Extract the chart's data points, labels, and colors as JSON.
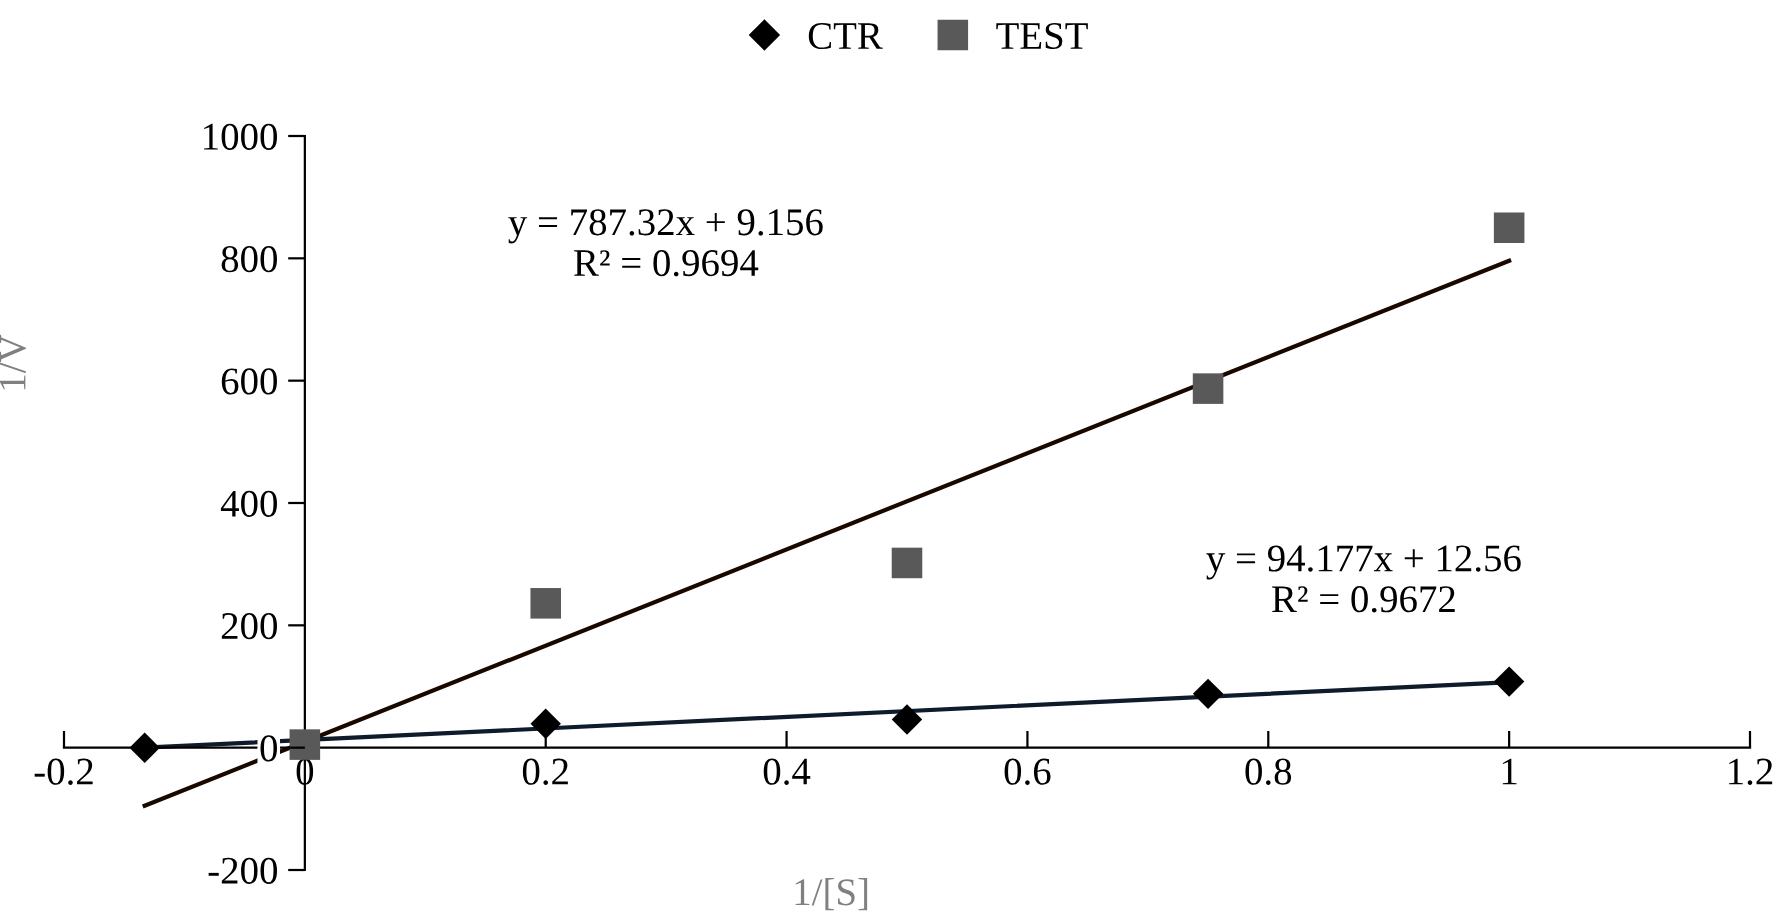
{
  "chart_data": {
    "type": "scatter",
    "xlabel": "1/[S]",
    "ylabel": "1/V",
    "xlim": [
      -0.2,
      1.2
    ],
    "xticks": [
      -0.2,
      0,
      0.2,
      0.4,
      0.6,
      0.8,
      1,
      1.2
    ],
    "ylim": [
      -200,
      1000
    ],
    "yticks": [
      -200,
      0,
      200,
      400,
      600,
      800,
      1000
    ],
    "grid": false,
    "legend": "top",
    "series": [
      {
        "name": "CTR",
        "color": "#000000",
        "marker": "diamond",
        "x": [
          -0.133,
          0.2,
          0.5,
          0.75,
          1
        ],
        "values": [
          0,
          39,
          46,
          88,
          108
        ]
      },
      {
        "name": "TEST",
        "color": "#595959",
        "marker": "square",
        "x": [
          0,
          0.2,
          0.5,
          0.75,
          1
        ],
        "values": [
          5,
          236,
          302,
          587,
          850
        ]
      },
      {
        "type": "line",
        "color": "#0d1b2a",
        "line_style": "solid",
        "marker": "none",
        "x": [
          -0.133,
          1
        ],
        "values": [
          0,
          107
        ]
      },
      {
        "type": "line",
        "color": "#1a0800",
        "line_style": "solid",
        "marker": "none",
        "x": [
          -0.133,
          1
        ],
        "values": [
          -95,
          796
        ]
      }
    ],
    "annotations": [
      "y = 787.32x + 9.156\nR² = 0.9694",
      "y = 94.177x + 12.56\nR² = 0.9672"
    ]
  }
}
